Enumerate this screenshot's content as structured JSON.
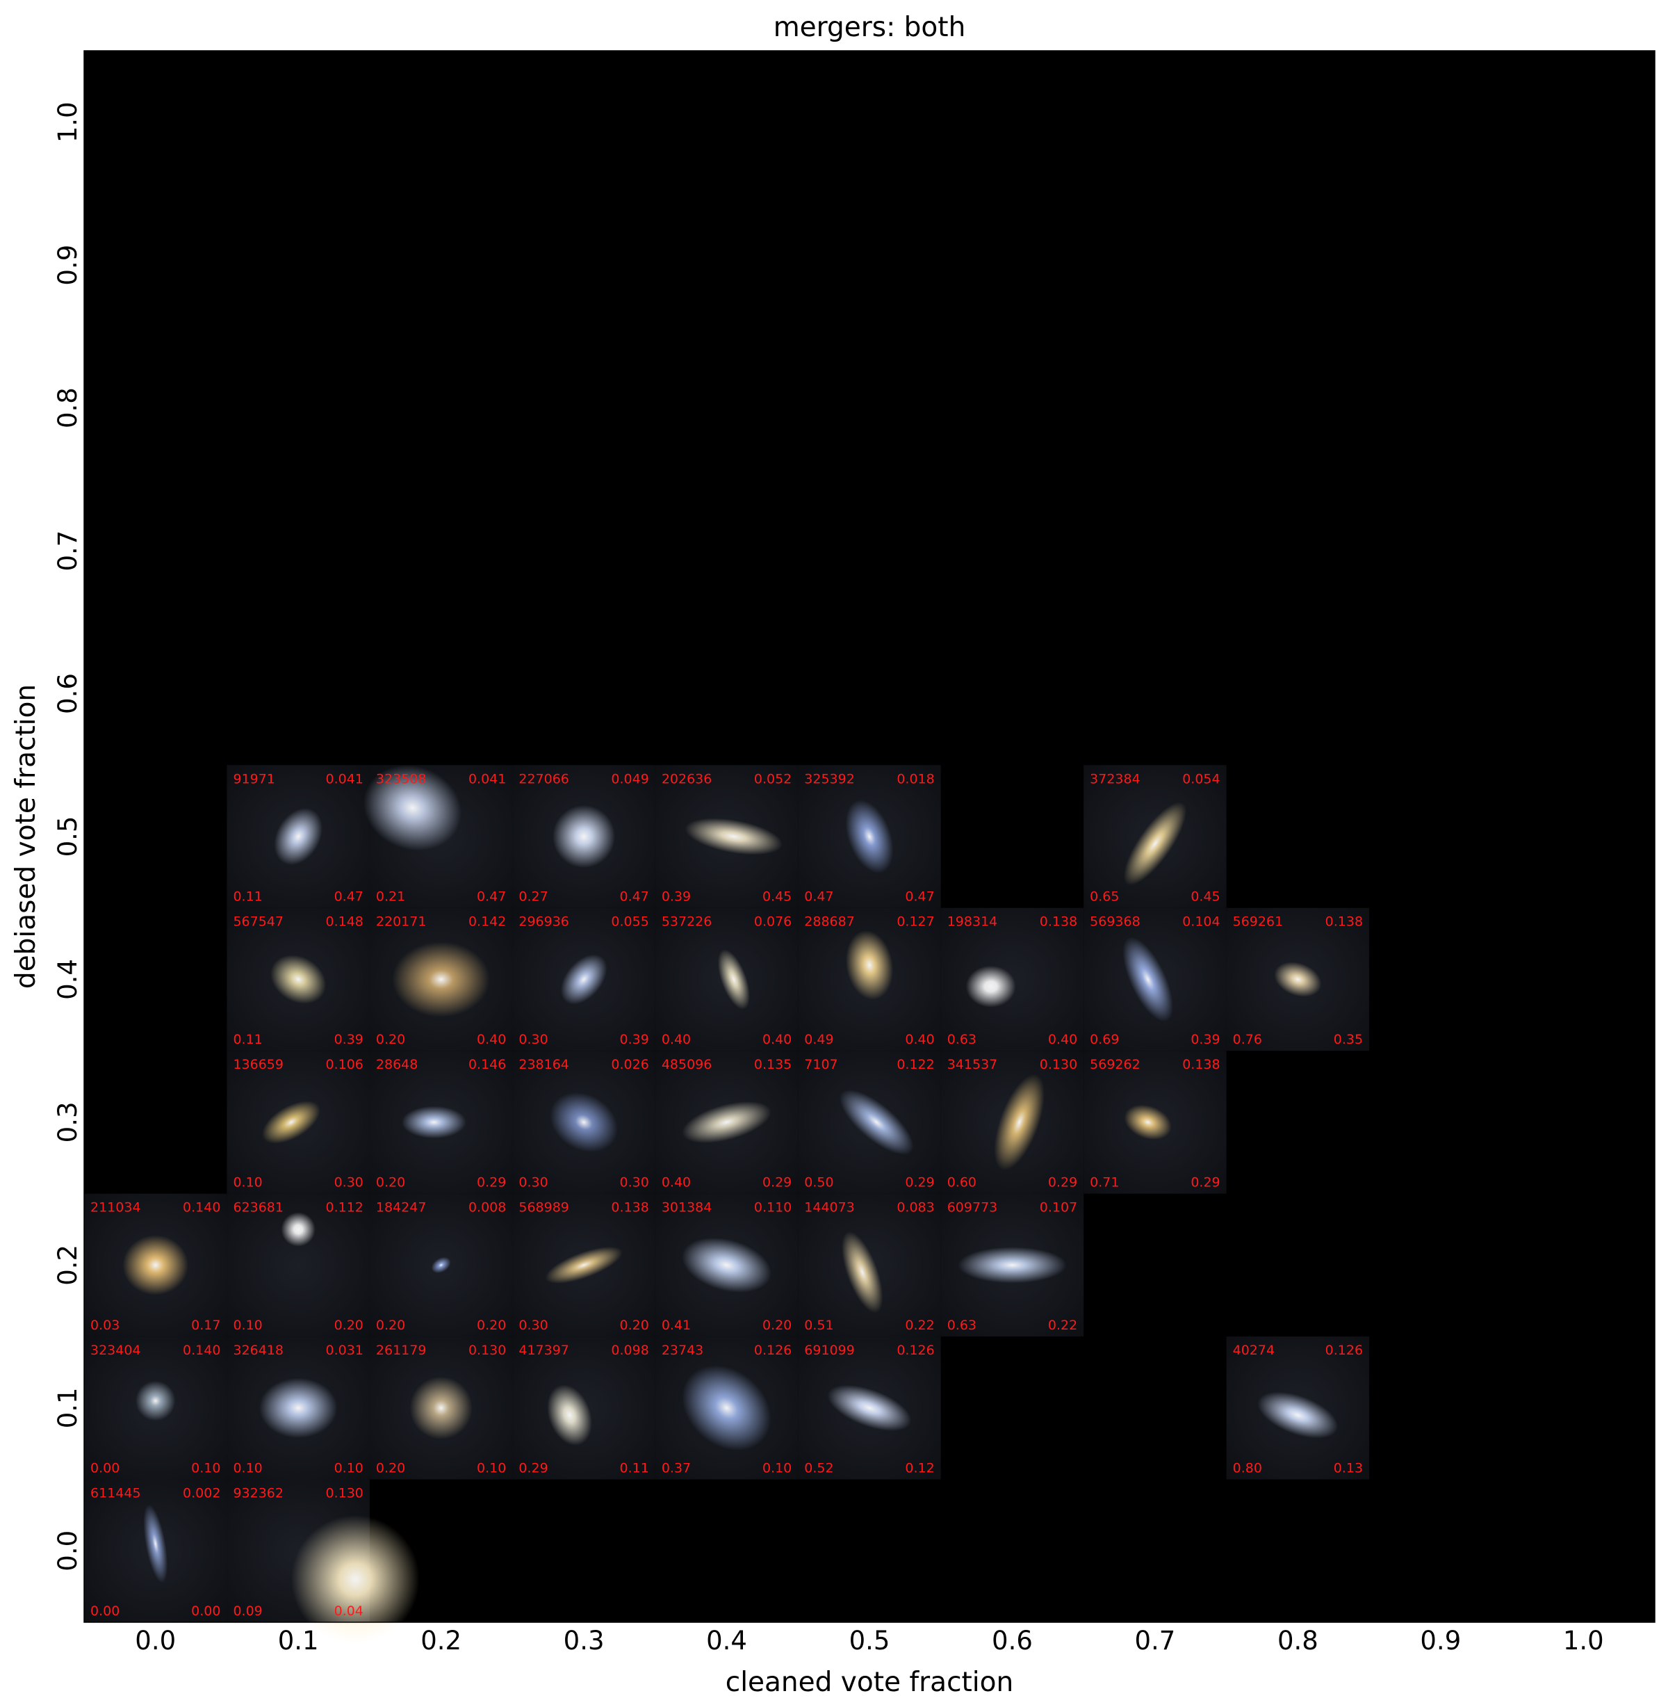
{
  "chart_data": {
    "type": "scatter",
    "title": "mergers: both",
    "xlabel": "cleaned vote fraction",
    "ylabel": "debiased vote fraction",
    "xlim": [
      -0.05,
      1.05
    ],
    "ylim": [
      -0.05,
      1.05
    ],
    "xticks": [
      "0.0",
      "0.1",
      "0.2",
      "0.3",
      "0.4",
      "0.5",
      "0.6",
      "0.7",
      "0.8",
      "0.9",
      "1.0"
    ],
    "yticks": [
      "0.0",
      "0.1",
      "0.2",
      "0.3",
      "0.4",
      "0.5",
      "0.6",
      "0.7",
      "0.8",
      "0.9",
      "1.0"
    ],
    "background": "#000000",
    "label_color": "#ff1a1a",
    "grid": false,
    "cells": [
      {
        "col": 1,
        "row": 5,
        "id": "91971",
        "value": "0.041",
        "cleaned": "0.11",
        "debiased": "0.47",
        "galaxy": {
          "x": 0.5,
          "y": 0.5,
          "size": 0.18,
          "color": "#c9d6f2",
          "elong": 1.4,
          "angle": -60
        }
      },
      {
        "col": 2,
        "row": 5,
        "id": "323508",
        "value": "0.041",
        "cleaned": "0.21",
        "debiased": "0.47",
        "galaxy": {
          "x": 0.3,
          "y": 0.3,
          "size": 0.32,
          "color": "#c8d4ee",
          "elong": 1.2,
          "angle": 20
        }
      },
      {
        "col": 3,
        "row": 5,
        "id": "227066",
        "value": "0.049",
        "cleaned": "0.27",
        "debiased": "0.47",
        "galaxy": {
          "x": 0.5,
          "y": 0.5,
          "size": 0.22,
          "color": "#d7e3fb",
          "elong": 1.0,
          "angle": 0
        }
      },
      {
        "col": 4,
        "row": 5,
        "id": "202636",
        "value": "0.052",
        "cleaned": "0.39",
        "debiased": "0.45",
        "galaxy": {
          "x": 0.55,
          "y": 0.5,
          "size": 0.2,
          "color": "#f2e6c8",
          "elong": 3.0,
          "angle": 10
        }
      },
      {
        "col": 5,
        "row": 5,
        "id": "325392",
        "value": "0.018",
        "cleaned": "0.47",
        "debiased": "0.47",
        "galaxy": {
          "x": 0.5,
          "y": 0.5,
          "size": 0.2,
          "color": "#8fa6e0",
          "elong": 1.8,
          "angle": 70
        }
      },
      {
        "col": 7,
        "row": 5,
        "id": "372384",
        "value": "0.054",
        "cleaned": "0.65",
        "debiased": "0.45",
        "galaxy": {
          "x": 0.5,
          "y": 0.55,
          "size": 0.2,
          "color": "#f0d89a",
          "elong": 3.0,
          "angle": -55
        }
      },
      {
        "col": 1,
        "row": 4,
        "id": "567547",
        "value": "0.148",
        "cleaned": "0.11",
        "debiased": "0.39",
        "galaxy": {
          "x": 0.5,
          "y": 0.5,
          "size": 0.18,
          "color": "#e9dca8",
          "elong": 1.3,
          "angle": 30
        }
      },
      {
        "col": 2,
        "row": 4,
        "id": "220171",
        "value": "0.142",
        "cleaned": "0.20",
        "debiased": "0.40",
        "galaxy": {
          "x": 0.5,
          "y": 0.5,
          "size": 0.3,
          "color": "#caa66a",
          "elong": 1.3,
          "angle": 0
        }
      },
      {
        "col": 3,
        "row": 4,
        "id": "296936",
        "value": "0.055",
        "cleaned": "0.30",
        "debiased": "0.39",
        "galaxy": {
          "x": 0.5,
          "y": 0.5,
          "size": 0.16,
          "color": "#b8c8ee",
          "elong": 1.6,
          "angle": -50
        }
      },
      {
        "col": 4,
        "row": 4,
        "id": "537226",
        "value": "0.076",
        "cleaned": "0.40",
        "debiased": "0.40",
        "galaxy": {
          "x": 0.55,
          "y": 0.5,
          "size": 0.14,
          "color": "#e9e0c0",
          "elong": 2.5,
          "angle": 70
        }
      },
      {
        "col": 5,
        "row": 4,
        "id": "288687",
        "value": "0.127",
        "cleaned": "0.49",
        "debiased": "0.40",
        "galaxy": {
          "x": 0.5,
          "y": 0.4,
          "size": 0.2,
          "color": "#f5d690",
          "elong": 1.5,
          "angle": 80
        }
      },
      {
        "col": 6,
        "row": 4,
        "id": "198314",
        "value": "0.138",
        "cleaned": "0.63",
        "debiased": "0.40",
        "galaxy": {
          "x": 0.35,
          "y": 0.55,
          "size": 0.16,
          "color": "#ffffff",
          "elong": 1.2,
          "angle": 0
        }
      },
      {
        "col": 7,
        "row": 4,
        "id": "569368",
        "value": "0.104",
        "cleaned": "0.69",
        "debiased": "0.39",
        "galaxy": {
          "x": 0.45,
          "y": 0.5,
          "size": 0.2,
          "color": "#9eb4ec",
          "elong": 2.6,
          "angle": 65
        }
      },
      {
        "col": 8,
        "row": 4,
        "id": "569261",
        "value": "0.138",
        "cleaned": "0.76",
        "debiased": "0.35",
        "galaxy": {
          "x": 0.5,
          "y": 0.5,
          "size": 0.14,
          "color": "#f0dcb0",
          "elong": 1.5,
          "angle": 20
        }
      },
      {
        "col": 1,
        "row": 3,
        "id": "136659",
        "value": "0.106",
        "cleaned": "0.10",
        "debiased": "0.30",
        "galaxy": {
          "x": 0.45,
          "y": 0.5,
          "size": 0.16,
          "color": "#e6c878",
          "elong": 2.0,
          "angle": -30
        }
      },
      {
        "col": 2,
        "row": 3,
        "id": "28648",
        "value": "0.146",
        "cleaned": "0.20",
        "debiased": "0.29",
        "galaxy": {
          "x": 0.45,
          "y": 0.5,
          "size": 0.16,
          "color": "#b8caf0",
          "elong": 2.0,
          "angle": 0
        }
      },
      {
        "col": 3,
        "row": 3,
        "id": "238164",
        "value": "0.026",
        "cleaned": "0.30",
        "debiased": "0.30",
        "galaxy": {
          "x": 0.5,
          "y": 0.5,
          "size": 0.22,
          "color": "#7d92c8",
          "elong": 1.3,
          "angle": 30
        }
      },
      {
        "col": 4,
        "row": 3,
        "id": "485096",
        "value": "0.135",
        "cleaned": "0.40",
        "debiased": "0.29",
        "galaxy": {
          "x": 0.5,
          "y": 0.5,
          "size": 0.2,
          "color": "#e0d8c0",
          "elong": 2.6,
          "angle": -15
        }
      },
      {
        "col": 5,
        "row": 3,
        "id": "7107",
        "value": "0.122",
        "cleaned": "0.50",
        "debiased": "0.29",
        "galaxy": {
          "x": 0.55,
          "y": 0.5,
          "size": 0.2,
          "color": "#a8bce8",
          "elong": 2.6,
          "angle": 40
        }
      },
      {
        "col": 6,
        "row": 3,
        "id": "341537",
        "value": "0.130",
        "cleaned": "0.60",
        "debiased": "0.29",
        "galaxy": {
          "x": 0.55,
          "y": 0.5,
          "size": 0.22,
          "color": "#e6c278",
          "elong": 2.6,
          "angle": -70
        }
      },
      {
        "col": 7,
        "row": 3,
        "id": "569262",
        "value": "0.138",
        "cleaned": "0.71",
        "debiased": "0.29",
        "galaxy": {
          "x": 0.45,
          "y": 0.5,
          "size": 0.14,
          "color": "#f0cc80",
          "elong": 1.5,
          "angle": 20
        }
      },
      {
        "col": 0,
        "row": 2,
        "id": "211034",
        "value": "0.140",
        "cleaned": "0.03",
        "debiased": "0.17",
        "galaxy": {
          "x": 0.5,
          "y": 0.5,
          "size": 0.22,
          "color": "#f2c778",
          "elong": 1.1,
          "angle": 0
        }
      },
      {
        "col": 1,
        "row": 2,
        "id": "623681",
        "value": "0.112",
        "cleaned": "0.10",
        "debiased": "0.20",
        "galaxy": {
          "x": 0.5,
          "y": 0.25,
          "size": 0.12,
          "color": "#ffffff",
          "elong": 1.0,
          "angle": 0
        }
      },
      {
        "col": 2,
        "row": 2,
        "id": "184247",
        "value": "0.008",
        "cleaned": "0.20",
        "debiased": "0.20",
        "galaxy": {
          "x": 0.5,
          "y": 0.5,
          "size": 0.06,
          "color": "#8ea6e0",
          "elong": 1.5,
          "angle": -30
        }
      },
      {
        "col": 3,
        "row": 2,
        "id": "568989",
        "value": "0.138",
        "cleaned": "0.30",
        "debiased": "0.20",
        "galaxy": {
          "x": 0.5,
          "y": 0.5,
          "size": 0.16,
          "color": "#e6c888",
          "elong": 3.2,
          "angle": -20
        }
      },
      {
        "col": 4,
        "row": 2,
        "id": "301384",
        "value": "0.110",
        "cleaned": "0.41",
        "debiased": "0.20",
        "galaxy": {
          "x": 0.5,
          "y": 0.5,
          "size": 0.24,
          "color": "#c8d8f8",
          "elong": 1.8,
          "angle": 15
        }
      },
      {
        "col": 5,
        "row": 2,
        "id": "144073",
        "value": "0.083",
        "cleaned": "0.51",
        "debiased": "0.22",
        "galaxy": {
          "x": 0.45,
          "y": 0.55,
          "size": 0.18,
          "color": "#e8d4a4",
          "elong": 2.8,
          "angle": 70
        }
      },
      {
        "col": 6,
        "row": 2,
        "id": "609773",
        "value": "0.107",
        "cleaned": "0.63",
        "debiased": "0.22",
        "galaxy": {
          "x": 0.5,
          "y": 0.5,
          "size": 0.22,
          "color": "#c4d4f2",
          "elong": 3.0,
          "angle": 0
        }
      },
      {
        "col": 0,
        "row": 1,
        "id": "323404",
        "value": "0.140",
        "cleaned": "0.00",
        "debiased": "0.10",
        "galaxy": {
          "x": 0.5,
          "y": 0.45,
          "size": 0.14,
          "color": "#a8b8c8",
          "elong": 1.0,
          "angle": 0
        }
      },
      {
        "col": 1,
        "row": 1,
        "id": "326418",
        "value": "0.031",
        "cleaned": "0.10",
        "debiased": "0.10",
        "galaxy": {
          "x": 0.5,
          "y": 0.5,
          "size": 0.24,
          "color": "#c2d2f4",
          "elong": 1.3,
          "angle": 0
        }
      },
      {
        "col": 2,
        "row": 1,
        "id": "261179",
        "value": "0.130",
        "cleaned": "0.20",
        "debiased": "0.10",
        "galaxy": {
          "x": 0.5,
          "y": 0.5,
          "size": 0.22,
          "color": "#c8b48e",
          "elong": 1.0,
          "angle": 0
        }
      },
      {
        "col": 3,
        "row": 1,
        "id": "417397",
        "value": "0.098",
        "cleaned": "0.29",
        "debiased": "0.11",
        "galaxy": {
          "x": 0.4,
          "y": 0.55,
          "size": 0.18,
          "color": "#f0ecd8",
          "elong": 1.5,
          "angle": 70
        }
      },
      {
        "col": 4,
        "row": 1,
        "id": "23743",
        "value": "0.126",
        "cleaned": "0.37",
        "debiased": "0.10",
        "galaxy": {
          "x": 0.5,
          "y": 0.5,
          "size": 0.3,
          "color": "#9ab2e8",
          "elong": 1.3,
          "angle": 40
        }
      },
      {
        "col": 5,
        "row": 1,
        "id": "691099",
        "value": "0.126",
        "cleaned": "0.52",
        "debiased": "0.12",
        "galaxy": {
          "x": 0.5,
          "y": 0.5,
          "size": 0.2,
          "color": "#d4e0fc",
          "elong": 2.4,
          "angle": 20
        }
      },
      {
        "col": 8,
        "row": 1,
        "id": "40274",
        "value": "0.126",
        "cleaned": "0.80",
        "debiased": "0.13",
        "galaxy": {
          "x": 0.5,
          "y": 0.55,
          "size": 0.2,
          "color": "#d0defc",
          "elong": 2.2,
          "angle": 20
        }
      },
      {
        "col": 0,
        "row": 0,
        "id": "611445",
        "value": "0.002",
        "cleaned": "0.00",
        "debiased": "0.00",
        "galaxy": {
          "x": 0.5,
          "y": 0.45,
          "size": 0.14,
          "color": "#8fa4d8",
          "elong": 4.0,
          "angle": 80
        }
      },
      {
        "col": 1,
        "row": 0,
        "id": "932362",
        "value": "0.130",
        "cleaned": "0.09",
        "debiased": "0.04",
        "galaxy": {
          "x": 0.9,
          "y": 0.7,
          "size": 0.45,
          "color": "#fff0c8",
          "elong": 1.0,
          "angle": 0
        }
      }
    ]
  }
}
